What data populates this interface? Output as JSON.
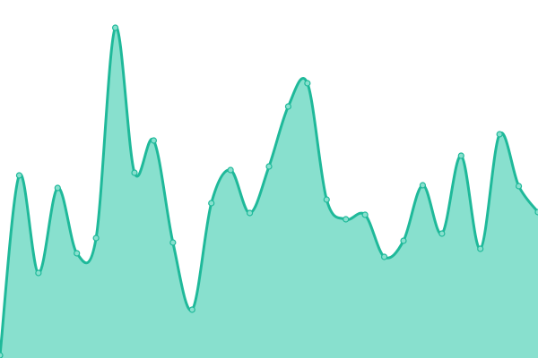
{
  "chart_data": {
    "type": "area",
    "x": [
      0,
      1,
      2,
      3,
      4,
      5,
      6,
      7,
      8,
      9,
      10,
      11,
      12,
      13,
      14,
      15,
      16,
      17,
      18,
      19,
      20,
      21,
      22,
      23,
      24,
      25,
      26,
      27,
      28
    ],
    "series": [
      {
        "color": "#1fb99a",
        "fill": "#88e0ce",
        "values": [
          3,
          204,
          95,
          190,
          117,
          134,
          369,
          207,
          243,
          129,
          54,
          173,
          210,
          162,
          214,
          281,
          307,
          177,
          155,
          160,
          113,
          131,
          193,
          139,
          226,
          122,
          250,
          192,
          163
        ]
      }
    ],
    "xlim": [
      0,
      28
    ],
    "ylim": [
      0,
      400
    ]
  }
}
